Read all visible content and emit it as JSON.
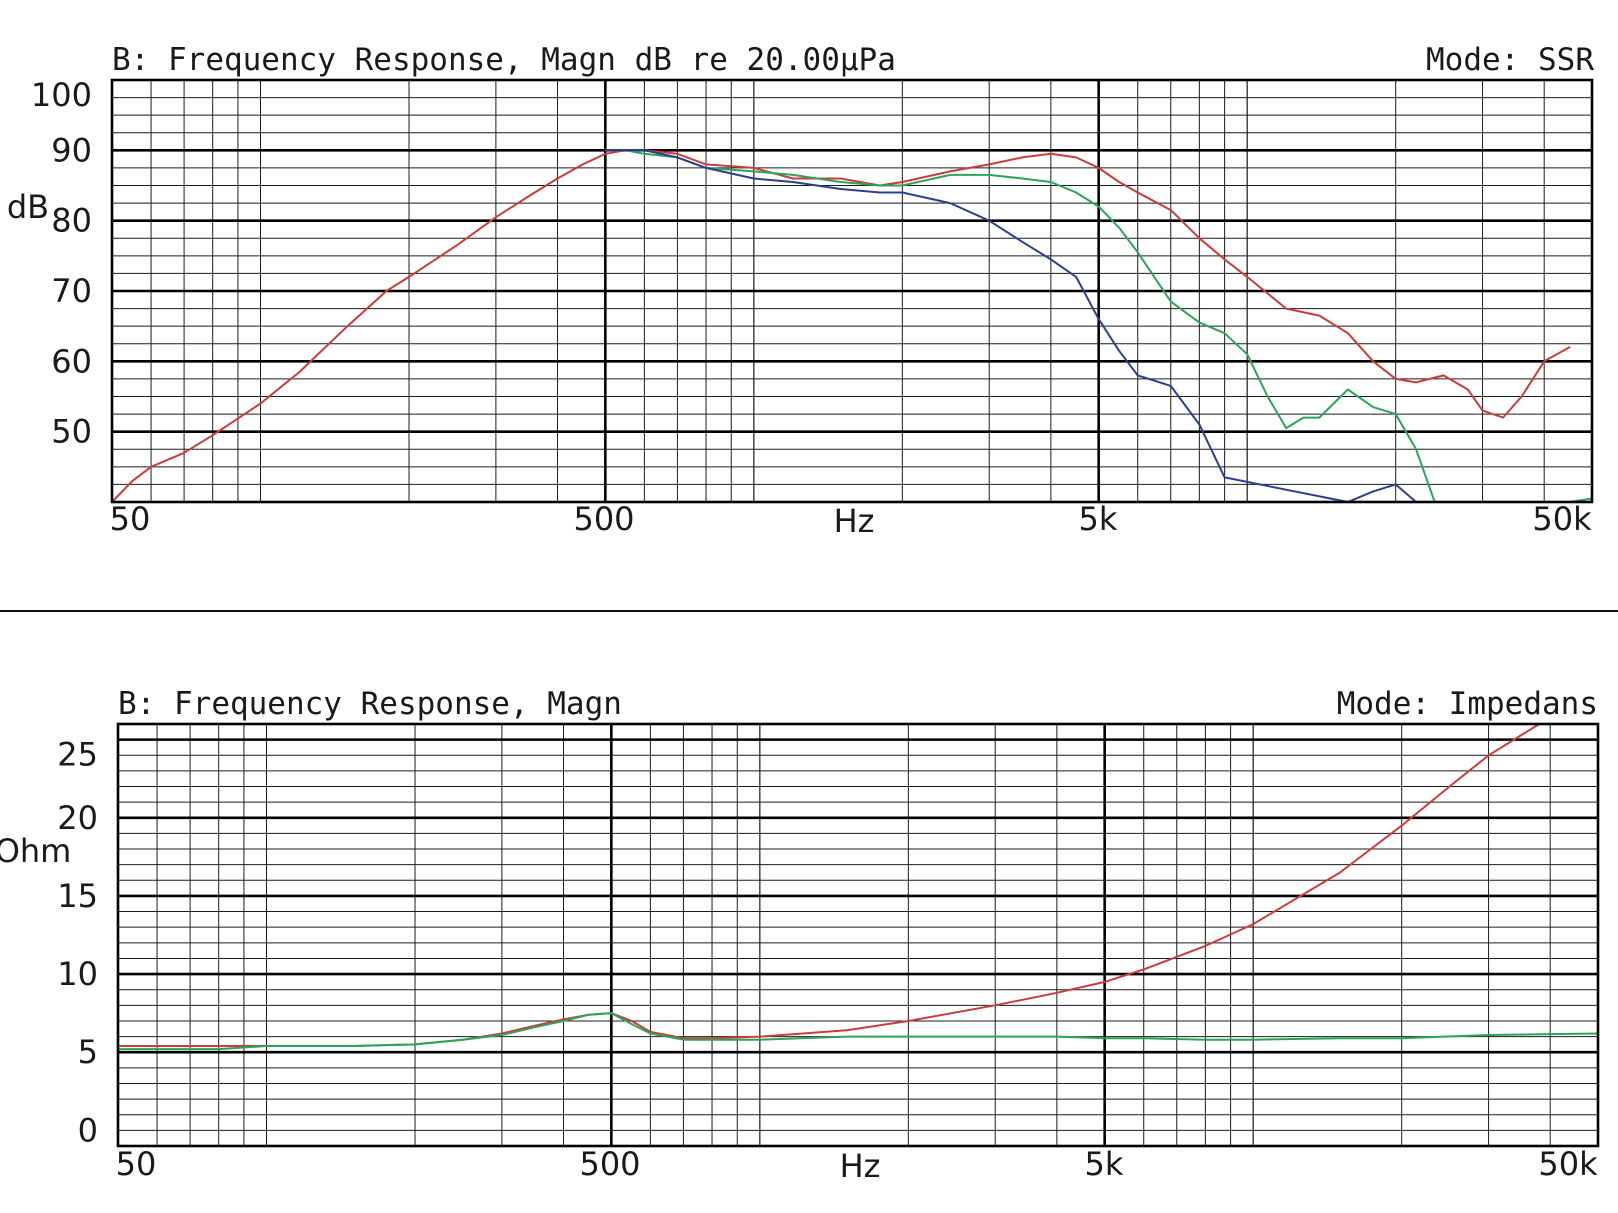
{
  "chart_data": [
    {
      "type": "line",
      "title": "B: Frequency Response, Magn dB re 20.00µPa",
      "mode_label": "Mode: SSR",
      "xlabel": "Hz",
      "ylabel": "dB",
      "xscale": "log",
      "xlim": [
        50,
        50000
      ],
      "ylim": [
        40,
        100
      ],
      "x_tick_labels": [
        "50",
        "500",
        "Hz",
        "5k",
        "50k"
      ],
      "y_tick_values": [
        100,
        90,
        80,
        70,
        60,
        50
      ],
      "y_tick_labels": [
        "100",
        "90",
        "80",
        "70",
        "60",
        "50"
      ],
      "grid": true,
      "series": [
        {
          "color": "#cc3c3c",
          "x": [
            50,
            55,
            60,
            70,
            80,
            100,
            120,
            150,
            180,
            200,
            250,
            300,
            350,
            400,
            450,
            500,
            550,
            600,
            700,
            800,
            1000,
            1200,
            1500,
            1800,
            2000,
            2500,
            3000,
            3500,
            4000,
            4500,
            5000,
            5500,
            6000,
            7000,
            8000,
            9000,
            10000,
            12000,
            14000,
            16000,
            18000,
            20000,
            22000,
            25000,
            28000,
            30000,
            33000,
            36000,
            40000,
            45000
          ],
          "y": [
            40,
            43,
            45,
            47,
            49.5,
            54,
            58.5,
            65,
            70,
            72,
            76.5,
            80.5,
            83.5,
            86,
            88,
            89.5,
            90,
            90,
            89.5,
            88,
            87.5,
            86,
            86,
            85,
            85.5,
            87,
            88,
            89,
            89.5,
            89,
            87.5,
            85.5,
            84,
            81.5,
            77.5,
            74.5,
            72,
            67.5,
            66.5,
            64,
            60,
            57.5,
            57,
            58,
            56,
            53,
            52,
            55,
            60,
            62
          ]
        },
        {
          "color": "#2ba55a",
          "x": [
            500,
            550,
            600,
            700,
            800,
            1000,
            1200,
            1500,
            1800,
            2000,
            2500,
            3000,
            3500,
            4000,
            4500,
            5000,
            5500,
            6000,
            7000,
            8000,
            9000,
            10000,
            11000,
            12000,
            13000,
            14000,
            16000,
            18000,
            20000,
            22000,
            24000,
            45000,
            50000
          ],
          "y": [
            90,
            90,
            89.5,
            89,
            87.5,
            87,
            86.5,
            85.5,
            85,
            85,
            86.5,
            86.5,
            86,
            85.5,
            84,
            82,
            79,
            75.5,
            68.5,
            65.5,
            64,
            61,
            55,
            50.5,
            52,
            52,
            56,
            53.5,
            52.5,
            47.5,
            40,
            40,
            40.5
          ]
        },
        {
          "color": "#2e3f8f",
          "x": [
            500,
            600,
            700,
            800,
            1000,
            1200,
            1500,
            1800,
            2000,
            2500,
            3000,
            3500,
            4000,
            4500,
            5000,
            5500,
            6000,
            7000,
            8000,
            9000,
            16000,
            18000,
            20000,
            22000
          ],
          "y": [
            90,
            90,
            89,
            87.5,
            86,
            85.5,
            84.5,
            84,
            84,
            82.5,
            80,
            77,
            74.5,
            72,
            66,
            61.5,
            58,
            56.5,
            51,
            43.5,
            40,
            41.5,
            42.5,
            40
          ]
        }
      ]
    },
    {
      "type": "line",
      "title": "B: Frequency Response, Magn",
      "mode_label": "Mode: Impedans",
      "xlabel": "Hz",
      "ylabel": "Ohm",
      "xscale": "log",
      "xlim": [
        50,
        50000
      ],
      "ylim": [
        -1,
        26
      ],
      "x_tick_labels": [
        "50",
        "500",
        "Hz",
        "5k",
        "50k"
      ],
      "y_tick_values": [
        25,
        20,
        15,
        10,
        5,
        0
      ],
      "y_tick_labels": [
        "25",
        "20",
        "15",
        "10",
        "5",
        "0"
      ],
      "grid": true,
      "series": [
        {
          "color": "#cc3c3c",
          "x": [
            50,
            80,
            100,
            150,
            200,
            250,
            300,
            350,
            400,
            450,
            500,
            550,
            600,
            700,
            800,
            1000,
            1500,
            2000,
            3000,
            4000,
            5000,
            6000,
            8000,
            10000,
            15000,
            20000,
            25000,
            30000,
            38000
          ],
          "y": [
            5.4,
            5.4,
            5.4,
            5.4,
            5.5,
            5.8,
            6.2,
            6.7,
            7.1,
            7.4,
            7.5,
            7.0,
            6.3,
            5.9,
            5.9,
            6.0,
            6.4,
            7.0,
            8.0,
            8.8,
            9.5,
            10.3,
            11.8,
            13.2,
            16.5,
            19.5,
            22.0,
            24.0,
            26.0
          ]
        },
        {
          "color": "#2ba55a",
          "x": [
            50,
            80,
            100,
            150,
            200,
            250,
            300,
            350,
            400,
            450,
            500,
            550,
            600,
            700,
            800,
            1000,
            1500,
            2000,
            3000,
            4000,
            5000,
            6000,
            8000,
            10000,
            15000,
            20000,
            30000,
            50000
          ],
          "y": [
            5.2,
            5.2,
            5.4,
            5.4,
            5.5,
            5.8,
            6.1,
            6.6,
            7.0,
            7.4,
            7.5,
            6.8,
            6.2,
            5.8,
            5.8,
            5.8,
            6.0,
            6.0,
            6.0,
            6.0,
            5.9,
            5.9,
            5.8,
            5.8,
            5.9,
            5.9,
            6.1,
            6.2
          ]
        }
      ]
    }
  ]
}
